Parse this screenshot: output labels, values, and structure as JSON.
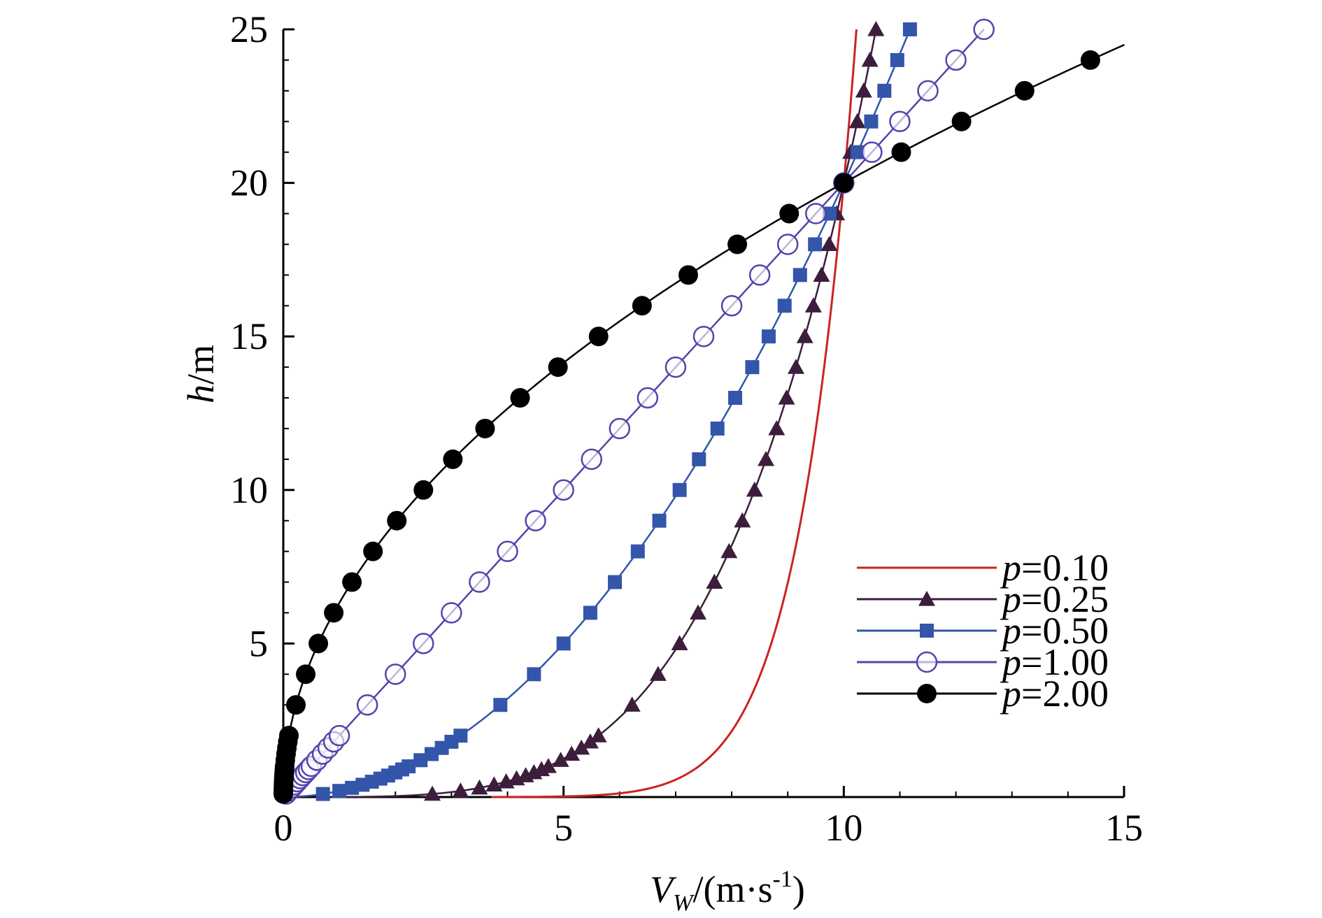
{
  "chart_data": {
    "type": "line",
    "title": "",
    "xlabel": {
      "symbol": "V",
      "subscript": "W",
      "unit": "/(m·s",
      "sup": "-1",
      "close": ")"
    },
    "ylabel": {
      "symbol": "h",
      "unit": "/m"
    },
    "xlim": [
      0,
      15
    ],
    "ylim": [
      0,
      25
    ],
    "xticks": [
      0,
      5,
      10,
      15
    ],
    "yticks": [
      5,
      10,
      15,
      20,
      25
    ],
    "xtick_labels": [
      "0",
      "5",
      "10",
      "15"
    ],
    "ytick_labels": [
      "5",
      "10",
      "15",
      "20",
      "25"
    ],
    "grid": false,
    "legend_position": "bottom-right",
    "reference": {
      "h": 20,
      "v": 10
    },
    "series": [
      {
        "name": "p=0.10",
        "var": "p",
        "value": "=0.10",
        "p": 0.1,
        "color": "#cc2222",
        "marker": "none",
        "h_max": 25
      },
      {
        "name": "p=0.25",
        "var": "p",
        "value": "=0.25",
        "p": 0.25,
        "color": "#3c1e3c",
        "marker": "triangle",
        "h_max": 25
      },
      {
        "name": "p=0.50",
        "var": "p",
        "value": "=0.50",
        "p": 0.5,
        "color": "#3355aa",
        "marker": "square",
        "h_max": 25
      },
      {
        "name": "p=1.00",
        "var": "p",
        "value": "=1.00",
        "p": 1.0,
        "color": "#5544aa",
        "marker": "open-circle",
        "h_max": 25
      },
      {
        "name": "p=2.00",
        "var": "p",
        "value": "=2.00",
        "p": 2.0,
        "color": "#000000",
        "marker": "filled-circle",
        "h_max": 24.5
      }
    ],
    "marker_heights": [
      0.1,
      0.2,
      0.3,
      0.4,
      0.5,
      0.6,
      0.7,
      0.8,
      0.9,
      1.0,
      1.2,
      1.4,
      1.6,
      1.8,
      2,
      3,
      4,
      5,
      6,
      7,
      8,
      9,
      10,
      11,
      12,
      13,
      14,
      15,
      16,
      17,
      18,
      19,
      20,
      21,
      22,
      23,
      24,
      25
    ]
  }
}
